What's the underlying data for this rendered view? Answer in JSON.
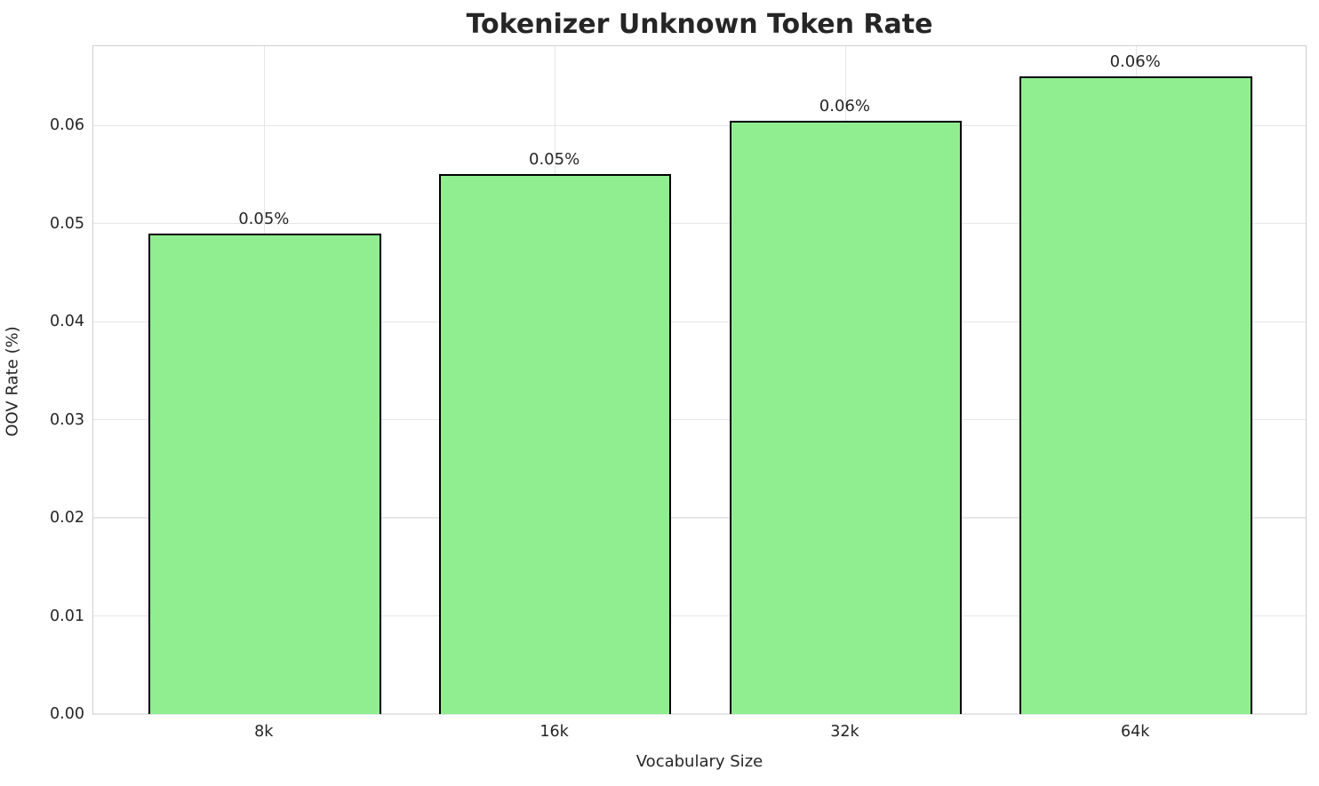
{
  "chart_data": {
    "type": "bar",
    "title": "Tokenizer Unknown Token Rate",
    "xlabel": "Vocabulary Size",
    "ylabel": "OOV Rate (%)",
    "categories": [
      "8k",
      "16k",
      "32k",
      "64k"
    ],
    "values": [
      0.049,
      0.055,
      0.0605,
      0.065
    ],
    "bar_labels": [
      "0.05%",
      "0.05%",
      "0.06%",
      "0.06%"
    ],
    "yticks": [
      0,
      0.01,
      0.02,
      0.03,
      0.04,
      0.05,
      0.06
    ],
    "ytick_labels": [
      "0.00",
      "0.01",
      "0.02",
      "0.03",
      "0.04",
      "0.05",
      "0.06"
    ],
    "ylim": [
      0,
      0.06825
    ],
    "grid": true,
    "legend": null,
    "colors": {
      "bar_fill": "#90EE90",
      "bar_edge": "#000000",
      "text": "#262626",
      "grid": "#e6e6e6",
      "spine": "#cfcfcf",
      "background": "#ffffff"
    }
  }
}
